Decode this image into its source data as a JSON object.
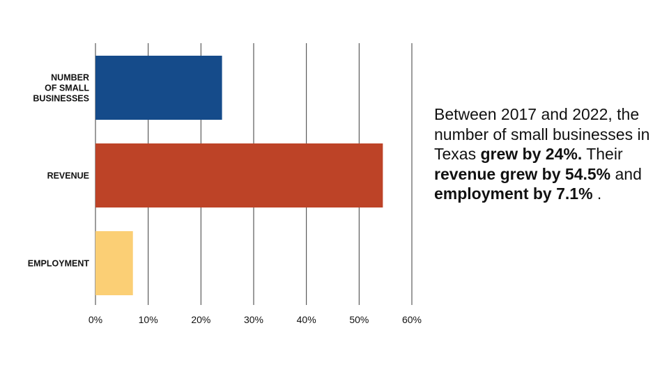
{
  "chart_data": {
    "type": "bar",
    "orientation": "horizontal",
    "categories": [
      [
        "NUMBER",
        "OF SMALL",
        "BUSINESSES"
      ],
      [
        "REVENUE"
      ],
      [
        "EMPLOYMENT"
      ]
    ],
    "values": [
      24,
      54.5,
      7.1
    ],
    "colors": [
      "#154b8a",
      "#bd4327",
      "#fbcf75"
    ],
    "xlim": [
      0,
      60
    ],
    "xticks": [
      "0%",
      "10%",
      "20%",
      "30%",
      "40%",
      "50%",
      "60%"
    ],
    "grid": true,
    "title": "",
    "xlabel": "",
    "ylabel": ""
  },
  "summary": {
    "part1": "Between 2017 and 2022, the number of small businesses in Texas ",
    "bold1": "grew by 24%.",
    "part2": " Their ",
    "bold2": "revenue grew by 54.5%",
    "part3": " and ",
    "bold3": "employment by 7.1%",
    "part4": "."
  }
}
